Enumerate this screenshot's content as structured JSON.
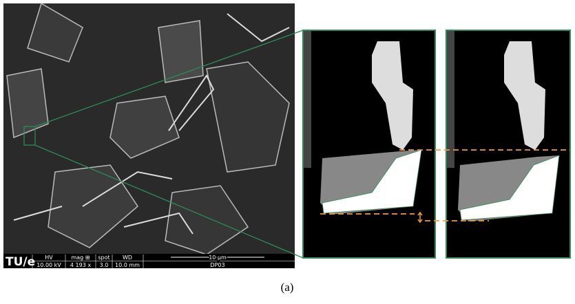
{
  "sem_info": {
    "logo": "TU/e",
    "hv_label": "HV",
    "hv": "10.00 kV",
    "mag_label": "mag ⊞",
    "mag": "4 193 x",
    "spot_label": "spot",
    "spot": "3.0",
    "wd_label": "WD",
    "wd": "10.0 mm",
    "scale": "10 μm",
    "sample": "DP03"
  },
  "caption": "(a)"
}
